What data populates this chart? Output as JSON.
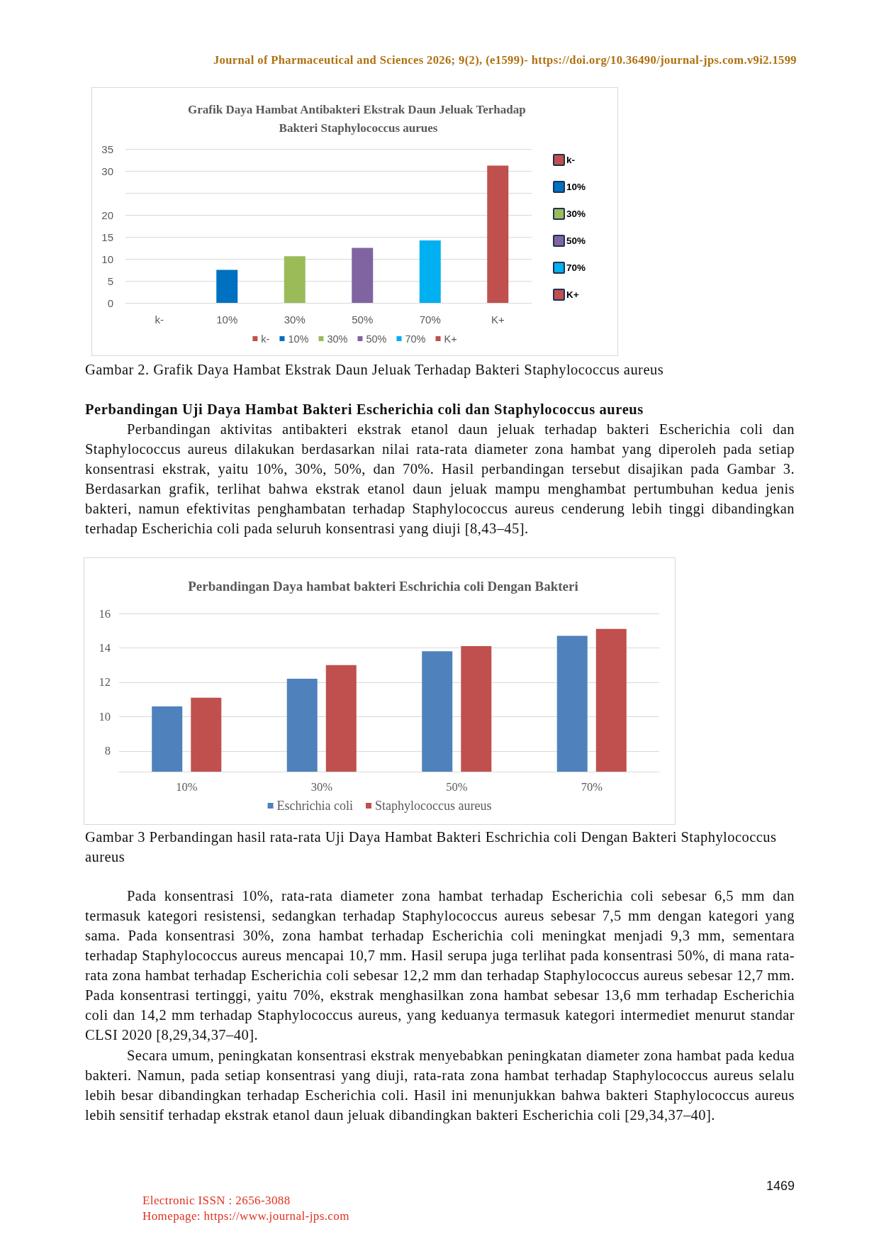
{
  "chart_data": [
    {
      "type": "bar",
      "title": "Grafik Daya Hambat Antibakteri Ekstrak Daun Jeluak Terhadap Bakteri Staphylococcus aurues",
      "categories": [
        "k-",
        "10%",
        "30%",
        "50%",
        "70%",
        "K+"
      ],
      "series": [
        {
          "name": "k-",
          "color": "#c0504d",
          "values": [
            0,
            null,
            null,
            null,
            null,
            null
          ]
        },
        {
          "name": "10%",
          "color": "#0070c0",
          "values": [
            null,
            7.5,
            null,
            null,
            null,
            null
          ]
        },
        {
          "name": "30%",
          "color": "#9bbb59",
          "values": [
            null,
            null,
            10.6,
            null,
            null,
            null
          ]
        },
        {
          "name": "50%",
          "color": "#8064a2",
          "values": [
            null,
            null,
            null,
            12.5,
            null,
            null
          ]
        },
        {
          "name": "70%",
          "color": "#00b0f0",
          "values": [
            null,
            null,
            null,
            null,
            14.2,
            null
          ]
        },
        {
          "name": "K+",
          "color": "#c0504d",
          "values": [
            null,
            null,
            null,
            null,
            null,
            31.2
          ]
        }
      ],
      "stacked": true,
      "ylim": [
        0,
        35
      ],
      "yticks": [
        0,
        5,
        10,
        15,
        20,
        {
          "value": 25,
          "label": null
        },
        30,
        35
      ],
      "grid": "y",
      "legend": "right",
      "annotations": [
        "Journal of Pharmaceutical and Sciences 2026; 9(2), (e1599)- https://doi.org/10.36490/journal-jps.com.v9i2.1599",
        "Gambar 2. Grafik Daya Hambat Ekstrak Daun Jeluak Terhadap Bakteri Staphylococcus aureus"
      ]
    },
    {
      "type": "bar",
      "title": "Perbandingan Daya hambat bakteri Eschrichia coli Dengan Bakteri",
      "categories": [
        "10%",
        "30%",
        "50%",
        "70%"
      ],
      "series": [
        {
          "name": "Eschrichia coli",
          "color": "#4f81bd",
          "values": [
            10.6,
            12.2,
            13.8,
            14.7
          ]
        },
        {
          "name": "Staphylococcus aureus",
          "color": "#c0504d",
          "values": [
            11.1,
            13.0,
            14.1,
            15.1
          ]
        }
      ],
      "ylim": [
        6.8,
        16
      ],
      "yticks": [
        8,
        10,
        12,
        14,
        16
      ],
      "grid": "y",
      "legend": "bottom",
      "annotations": [
        "Perbandingan Uji Daya Hambat Bakteri Escherichia coli dan Staphylococcus aureus",
        "Perbandingan aktivitas antibakteri ekstrak etanol daun jeluak terhadap bakteri Escherichia coli dan Staphylococcus aureus dilakukan berdasarkan nilai rata-rata diameter zona hambat yang diperoleh pada setiap konsentrasi ekstrak, yaitu 10%, 30%, 50%, dan 70%. Hasil perbandingan tersebut disajikan pada Gambar 3. Berdasarkan grafik, terlihat bahwa ekstrak etanol daun jeluak mampu menghambat pertumbuhan kedua jenis bakteri, namun efektivitas penghambatan terhadap Staphylococcus aureus cenderung lebih tinggi dibandingkan terhadap Escherichia coli pada seluruh konsentrasi yang diuji [8,43–45].",
        "Gambar 3 Perbandingan hasil rata-rata Uji Daya Hambat Bakteri Eschrichia coli Dengan Bakteri Staphylococcus aureus",
        "Pada konsentrasi 10%, rata-rata diameter zona hambat terhadap Escherichia coli sebesar 6,5 mm dan termasuk kategori resistensi, sedangkan terhadap Staphylococcus aureus sebesar 7,5 mm dengan kategori yang sama. Pada konsentrasi 30%, zona hambat terhadap Escherichia coli meningkat menjadi 9,3 mm, sementara terhadap Staphylococcus aureus mencapai 10,7 mm. Hasil serupa juga terlihat pada konsentrasi 50%, di mana rata-rata zona hambat terhadap Escherichia coli sebesar 12,2 mm dan terhadap Staphylococcus aureus sebesar 12,7 mm. Pada konsentrasi tertinggi, yaitu 70%, ekstrak menghasilkan zona hambat sebesar 13,6 mm terhadap Escherichia coli dan 14,2 mm terhadap Staphylococcus aureus, yang keduanya termasuk kategori intermediet menurut standar CLSI 2020 [8,29,34,37–40].",
        "Secara umum, peningkatan konsentrasi ekstrak menyebabkan peningkatan diameter zona hambat pada kedua bakteri. Namun, pada setiap konsentrasi yang diuji, rata-rata zona hambat terhadap Staphylococcus aureus selalu lebih besar dibandingkan terhadap Escherichia coli. Hasil ini menunjukkan bahwa bakteri Staphylococcus aureus lebih sensitif terhadap ekstrak etanol daun jeluak dibandingkan bakteri Escherichia coli [29,34,37–40].",
        "1469",
        "Electronic ISSN : 2656-3088",
        "Homepage: https://www.journal-jps.com"
      ]
    }
  ]
}
